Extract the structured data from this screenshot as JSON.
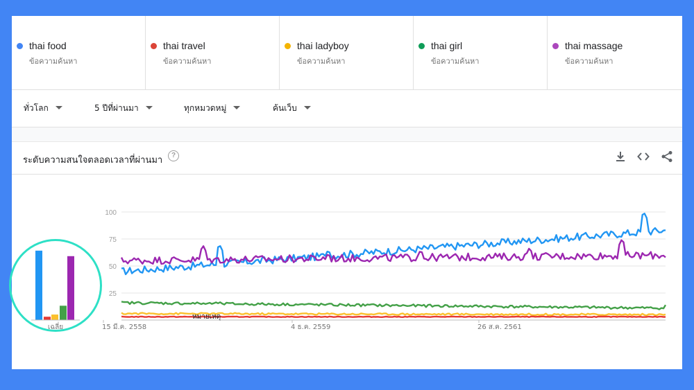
{
  "terms": [
    {
      "name": "thai food",
      "sub": "ข้อความค้นหา",
      "color": "#4285f4"
    },
    {
      "name": "thai travel",
      "sub": "ข้อความค้นหา",
      "color": "#db4437"
    },
    {
      "name": "thai ladyboy",
      "sub": "ข้อความค้นหา",
      "color": "#f4b400"
    },
    {
      "name": "thai girl",
      "sub": "ข้อความค้นหา",
      "color": "#0f9d58"
    },
    {
      "name": "thai massage",
      "sub": "ข้อความค้นหา",
      "color": "#ab47bc"
    }
  ],
  "filters": {
    "region": "ทั่วโลก",
    "period": "5 ปีที่ผ่านมา",
    "category": "ทุกหมวดหมู่",
    "search_type": "ค้นเว็บ"
  },
  "chart_header": {
    "title": "ระดับความสนใจตลอดเวลาที่ผ่านมา",
    "help": "?"
  },
  "icons": [
    "download-icon",
    "embed-code-icon",
    "share-icon"
  ],
  "chart_data": {
    "type": "line",
    "ylim": [
      0,
      100
    ],
    "yticks": [
      "100",
      "75",
      "50",
      "25"
    ],
    "xtick_labels": [
      "15 มี.ค. 2558",
      "4 ธ.ค. 2559",
      "26 ส.ค. 2561"
    ],
    "annotation": "หมายเหตุ",
    "average_label": "เฉลี่ย",
    "averages": [
      {
        "name": "thai food",
        "value": 63,
        "color": "#2196f3"
      },
      {
        "name": "thai travel",
        "value": 3,
        "color": "#e53935"
      },
      {
        "name": "thai ladyboy",
        "value": 5,
        "color": "#fbc02d"
      },
      {
        "name": "thai girl",
        "value": 13,
        "color": "#43a047"
      },
      {
        "name": "thai massage",
        "value": 58,
        "color": "#9c27b0"
      }
    ],
    "series": [
      {
        "name": "thai food",
        "color": "#2196f3",
        "start": 45,
        "end": 83,
        "noise": 3.5,
        "spikes": [
          [
            0.18,
            70
          ],
          [
            0.38,
            65
          ],
          [
            0.52,
            63
          ],
          [
            0.73,
            74
          ],
          [
            0.96,
            100
          ]
        ]
      },
      {
        "name": "thai massage",
        "color": "#9c27b0",
        "start": 55,
        "end": 60,
        "noise": 3.5,
        "spikes": [
          [
            0.15,
            69
          ],
          [
            0.38,
            62
          ],
          [
            0.55,
            65
          ],
          [
            0.75,
            67
          ],
          [
            0.92,
            75
          ]
        ]
      },
      {
        "name": "thai girl",
        "color": "#43a047",
        "start": 16,
        "end": 11,
        "noise": 1.2,
        "spikes": [
          [
            0.18,
            18
          ],
          [
            1.0,
            14
          ]
        ]
      },
      {
        "name": "thai ladyboy",
        "color": "#fbc02d",
        "start": 6,
        "end": 5,
        "noise": 0.8,
        "spikes": []
      },
      {
        "name": "thai travel",
        "color": "#e53935",
        "start": 3,
        "end": 3,
        "noise": 0.3,
        "spikes": []
      }
    ]
  }
}
